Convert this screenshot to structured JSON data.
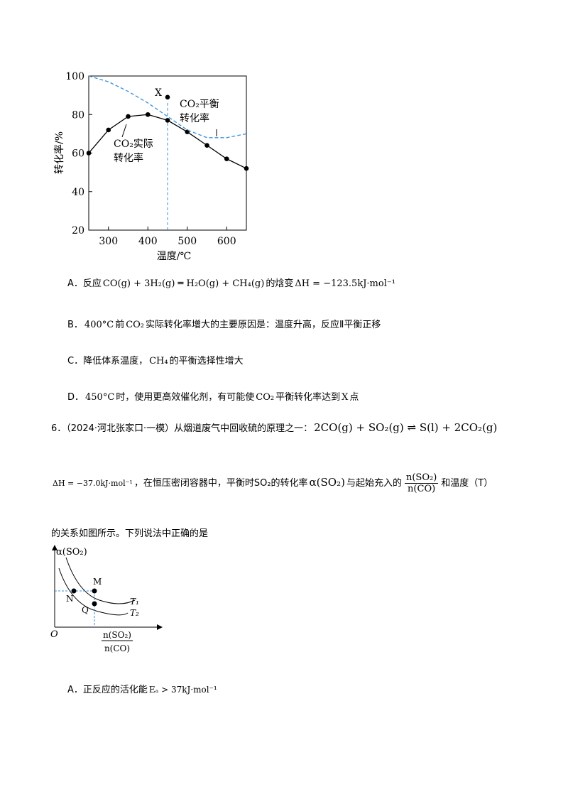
{
  "figure1": {
    "type": "line",
    "x_label": "温度/℃",
    "y_label": "转化率/%",
    "xlim": [
      250,
      650
    ],
    "xticks": [
      300,
      400,
      500,
      600
    ],
    "ylim": [
      20,
      100
    ],
    "yticks": [
      20,
      40,
      60,
      80,
      100
    ],
    "series": [
      {
        "name_lines": [
          "CO₂实际",
          "转化率"
        ],
        "color": "#000000",
        "dashed": false,
        "markers": true,
        "x": [
          250,
          300,
          350,
          400,
          450,
          500,
          550,
          600,
          650
        ],
        "values": [
          60,
          72,
          79,
          80,
          77,
          71,
          64,
          57,
          52
        ]
      },
      {
        "name_lines": [
          "CO₂平衡",
          "转化率"
        ],
        "color": "#3a8fd9",
        "dashed": true,
        "markers": false,
        "x": [
          250,
          300,
          350,
          400,
          450,
          500,
          550,
          600,
          650
        ],
        "values": [
          100,
          97,
          92,
          86,
          79,
          72,
          68,
          68,
          70
        ]
      }
    ],
    "point": {
      "label": "X",
      "x": 450,
      "y": 89
    },
    "vline_x": 450
  },
  "options1": {
    "A": [
      "A．反应",
      "CO(g) + 3H₂(g) ═ H₂O(g) + CH₄(g)",
      "的焓变",
      "ΔH = −123.5kJ·mol⁻¹"
    ],
    "B": [
      "B．",
      "400°C",
      "前",
      "CO₂",
      "实际转化率增大的主要原因是：温度升高，反应Ⅱ平衡正移"
    ],
    "C": [
      "C．降低体系温度，",
      "CH₄",
      "的平衡选择性增大"
    ],
    "D": [
      "D．",
      "450°C",
      "时，使用更高效催化剂，有可能使",
      "CO₂",
      "平衡转化率达到",
      "X",
      "点"
    ]
  },
  "question6": {
    "line1": [
      "6．（2024·河北张家口·一模）从烟道废气中回收硫的原理之一：",
      "2CO(g) + SO₂(g) ⇌ S(l) + 2CO₂(g)"
    ],
    "line2": [
      "ΔH = −37.0kJ·mol⁻¹",
      "，在恒压密闭容器中，平衡时SO₂的转化率",
      "α(SO₂)",
      "与起始充入的",
      "n(SO₂)",
      "n(CO)",
      "和温度（T）"
    ],
    "line3": "的关系如图所示。下列说法中正确的是",
    "figure2": {
      "y_label": "α(SO₂)",
      "origin": "O",
      "x_label_num": "n(SO₂)",
      "x_label_den": "n(CO)",
      "curve1": "T₁",
      "curve2": "T₂",
      "points": [
        "M",
        "N",
        "Q"
      ]
    },
    "optionA": [
      "A．正反应的活化能",
      "Eₐ > 37kJ·mol⁻¹"
    ]
  }
}
